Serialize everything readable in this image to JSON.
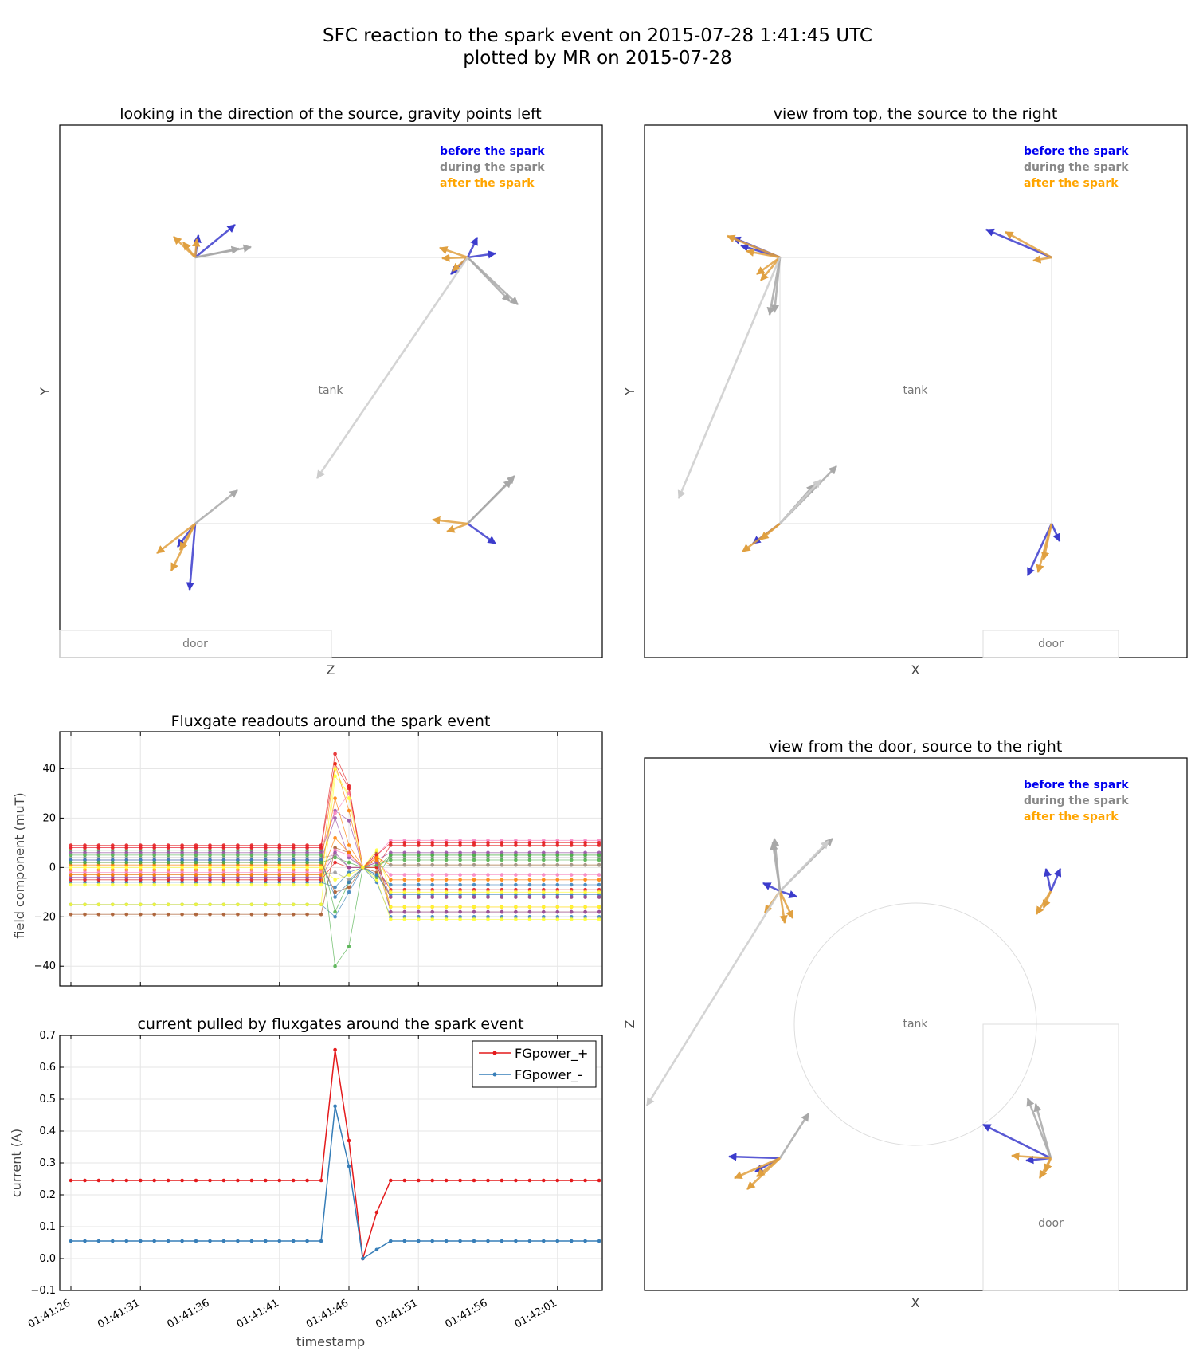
{
  "title_line1": "SFC reaction to the spark event on 2015-07-28 1:41:45 UTC",
  "title_line2": "plotted by MR on 2015-07-28",
  "legend_labels": {
    "before": "before the spark",
    "during": "during the spark",
    "after": "after the spark"
  },
  "colors": {
    "before": "#0000ee",
    "during": "#888888",
    "after": "#ffa500",
    "arrow_before": "#3c3ccc",
    "arrow_during": "#a8a8a8",
    "arrow_during_light": "#cccccc",
    "arrow_after": "#e0a040",
    "red": "#e41a1c",
    "blue": "#377eb8"
  },
  "panels": {
    "side": {
      "title": "looking in the direction of the source, gravity points left",
      "xlabel": "Z",
      "ylabel": "Y",
      "tank_label": "tank",
      "door_label": "door"
    },
    "top": {
      "title": "view from top, the source to the right",
      "xlabel": "X",
      "ylabel": "Y",
      "tank_label": "tank",
      "door_label": "door"
    },
    "door": {
      "title": "view from the door, source to the right",
      "xlabel": "X",
      "ylabel": "Z",
      "tank_label": "tank",
      "door_label": "door"
    }
  },
  "chart_data": [
    {
      "type": "line",
      "title": "Fluxgate readouts around the spark event",
      "xlabel": "",
      "ylabel": "field component (muT)",
      "ylim": [
        -48,
        55
      ],
      "yticks": [
        -40,
        -20,
        0,
        20,
        40
      ],
      "xticks": [
        "01:41:26",
        "01:41:31",
        "01:41:36",
        "01:41:41",
        "01:41:46",
        "01:41:51",
        "01:41:56",
        "01:42:01"
      ],
      "grid": true,
      "series_colors": [
        "#e41a1c",
        "#377eb8",
        "#4daf4a",
        "#984ea3",
        "#ff7f00",
        "#ffff33",
        "#a65628",
        "#f781bf",
        "#999999",
        "#e41a1c",
        "#377eb8",
        "#4daf4a",
        "#984ea3",
        "#ff7f00",
        "#ffff33",
        "#a65628",
        "#f781bf",
        "#999999",
        "#e41a1c",
        "#377eb8",
        "#4daf4a",
        "#984ea3",
        "#ff7f00",
        "#ffff33"
      ],
      "before_values": [
        9,
        -15,
        7,
        6,
        1,
        -15,
        -19,
        8,
        4,
        8,
        -6,
        5,
        3,
        -1,
        0,
        2,
        -2,
        -3,
        -5,
        3,
        2,
        -4,
        -3,
        -7
      ],
      "spike_values": [
        46,
        -20,
        -40,
        23,
        42,
        37,
        8,
        22,
        5,
        42,
        -8,
        -18,
        20,
        28,
        -5,
        -10,
        7,
        -2,
        2,
        -12,
        4,
        6,
        12,
        40
      ],
      "after_values": [
        9,
        -20,
        5,
        6,
        1,
        -21,
        -18,
        11,
        4,
        10,
        -7,
        5,
        -18,
        -16,
        -16,
        -12,
        -3,
        1,
        -9,
        -11,
        3,
        -12,
        -5,
        -10
      ],
      "spike_second_values": [
        33,
        -10,
        -32,
        19,
        23,
        30,
        6,
        30,
        0,
        32,
        -2,
        -6,
        4,
        9,
        -3,
        -8,
        5,
        -5,
        0,
        -6,
        2,
        0,
        6,
        28
      ],
      "recovery_values": [
        0,
        -6,
        0,
        3,
        4,
        -5,
        6,
        5,
        0,
        5,
        -3,
        -4,
        2,
        4,
        0,
        -2,
        2,
        0,
        0,
        -3,
        1,
        2,
        3,
        7
      ]
    },
    {
      "type": "line",
      "title": "current pulled by fluxgates around the spark event",
      "xlabel": "timestamp",
      "ylabel": "current (A)",
      "ylim": [
        -0.1,
        0.7
      ],
      "yticks": [
        -0.1,
        0.0,
        0.1,
        0.2,
        0.3,
        0.4,
        0.5,
        0.6,
        0.7
      ],
      "ytick_labels": [
        "−0.1",
        "0.0",
        "0.1",
        "0.2",
        "0.3",
        "0.4",
        "0.5",
        "0.6",
        "0.7"
      ],
      "xticks": [
        "01:41:26",
        "01:41:31",
        "01:41:36",
        "01:41:41",
        "01:41:46",
        "01:41:51",
        "01:41:56",
        "01:42:01"
      ],
      "grid": true,
      "legend_position": "top-right",
      "series": [
        {
          "name": "FGpower_+",
          "color": "#e41a1c",
          "values": [
            0.245,
            0.245,
            0.245,
            0.245,
            0.245,
            0.245,
            0.245,
            0.245,
            0.245,
            0.245,
            0.245,
            0.245,
            0.245,
            0.245,
            0.245,
            0.245,
            0.245,
            0.245,
            0.245,
            0.655,
            0.37,
            0.0,
            0.145,
            0.245,
            0.245,
            0.245,
            0.245,
            0.245,
            0.245,
            0.245,
            0.245,
            0.245,
            0.245,
            0.245,
            0.245,
            0.245,
            0.245,
            0.245,
            0.245
          ]
        },
        {
          "name": "FGpower_-",
          "color": "#377eb8",
          "values": [
            0.055,
            0.055,
            0.055,
            0.055,
            0.055,
            0.055,
            0.055,
            0.055,
            0.055,
            0.055,
            0.055,
            0.055,
            0.055,
            0.055,
            0.055,
            0.055,
            0.055,
            0.055,
            0.055,
            0.478,
            0.29,
            0.0,
            0.028,
            0.055,
            0.055,
            0.055,
            0.055,
            0.055,
            0.055,
            0.055,
            0.055,
            0.055,
            0.055,
            0.055,
            0.055,
            0.055,
            0.055,
            0.055,
            0.055
          ]
        }
      ]
    }
  ]
}
